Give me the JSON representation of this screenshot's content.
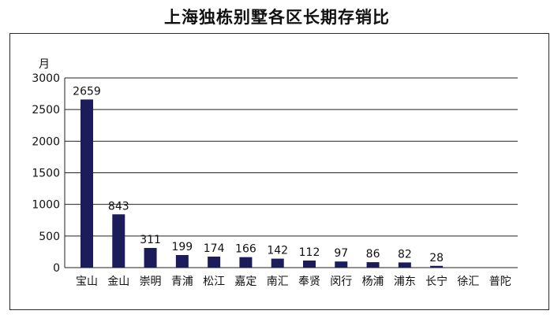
{
  "chart_data": {
    "type": "bar",
    "title": "上海独栋别墅各区长期存销比",
    "ylabel": "月",
    "ylim": [
      0,
      3000
    ],
    "yticks": [
      0,
      500,
      1000,
      1500,
      2000,
      2500,
      3000
    ],
    "grid": true,
    "legend": "none",
    "categories": [
      "宝山",
      "金山",
      "崇明",
      "青浦",
      "松江",
      "嘉定",
      "南汇",
      "奉贤",
      "闵行",
      "杨浦",
      "浦东",
      "长宁",
      "徐汇",
      "普陀"
    ],
    "values": [
      2659,
      843,
      311,
      199,
      174,
      166,
      142,
      112,
      97,
      86,
      82,
      28,
      null,
      null
    ],
    "data_labels": [
      "2659",
      "843",
      "311",
      "199",
      "174",
      "166",
      "142",
      "112",
      "97",
      "86",
      "82",
      "28",
      "",
      ""
    ],
    "bar_color": "#1c1c5a"
  }
}
